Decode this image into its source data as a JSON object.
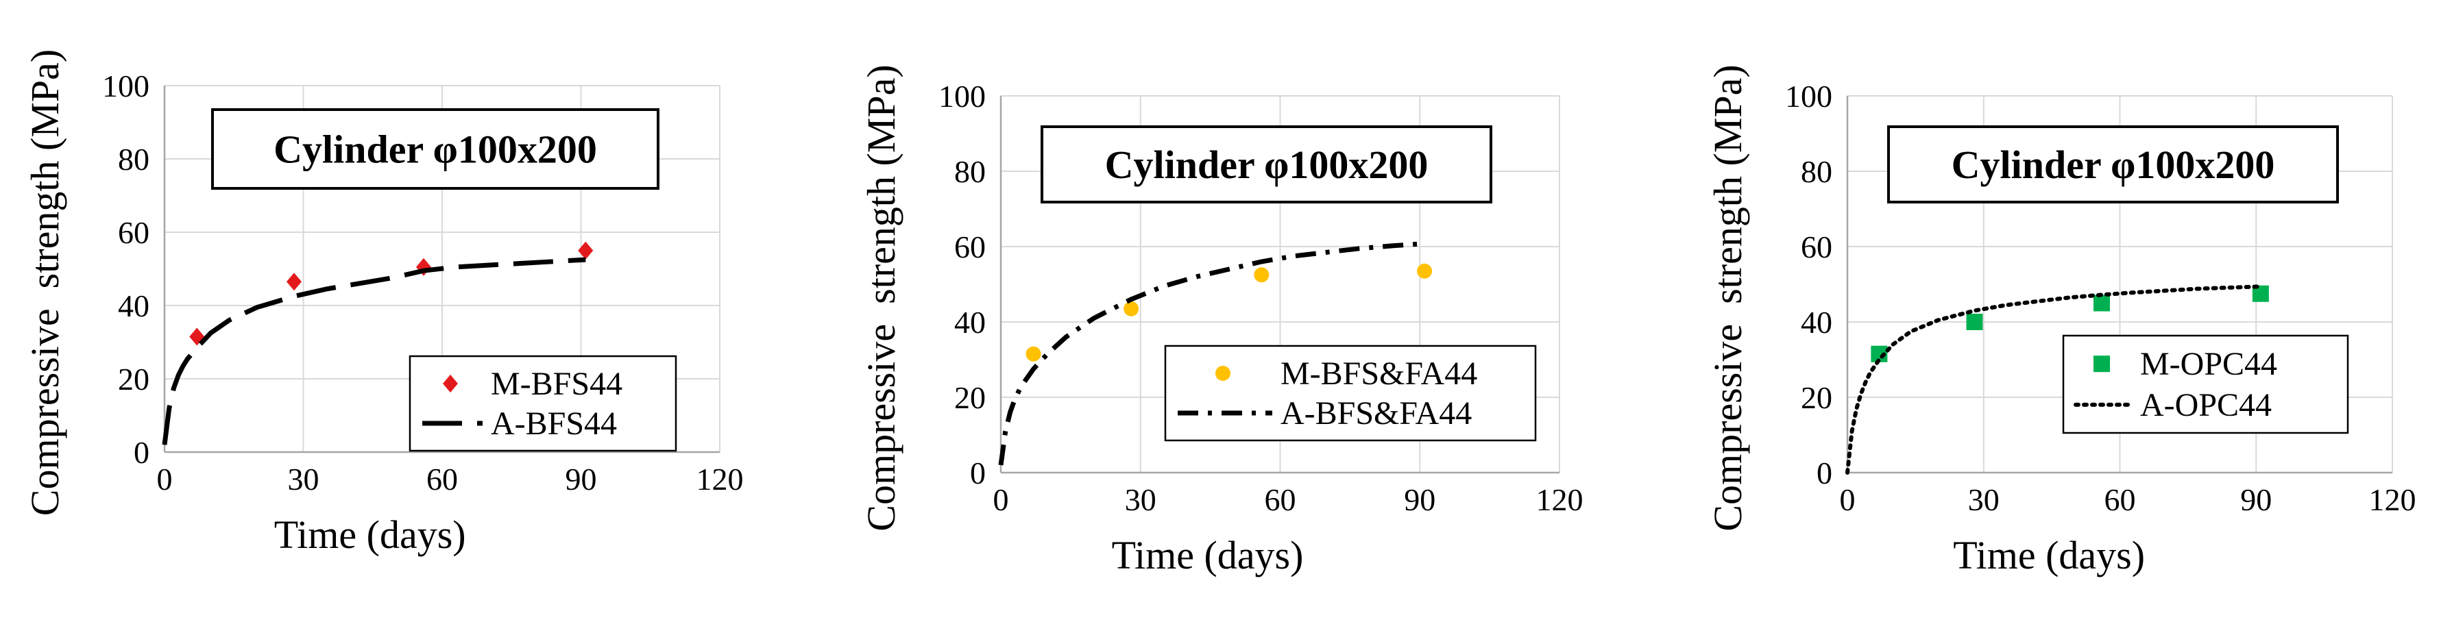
{
  "colors": {
    "grid": "#d9d9d9",
    "axis": "#a6a6a6",
    "text": "#000000",
    "bfs_marker": "#e31a1c",
    "bfsfa_marker": "#ffc000",
    "opc_marker": "#00b050",
    "model_line": "#000000"
  },
  "chart_data": [
    {
      "type": "scatter",
      "title": "Cylinder φ100x200",
      "xlabel": "Time (days)",
      "ylabel": "Compressive  strength (MPa)",
      "xlim": [
        0,
        120
      ],
      "ylim": [
        0,
        100
      ],
      "xticks": [
        0,
        30,
        60,
        90,
        120
      ],
      "yticks": [
        0,
        20,
        40,
        60,
        80,
        100
      ],
      "grid": true,
      "legend_position": "lower-right",
      "series": [
        {
          "name": "M-BFS44",
          "kind": "marker",
          "marker": "diamond",
          "color": "#e31a1c",
          "x": [
            7,
            28,
            56,
            91
          ],
          "y": [
            31.5,
            46.5,
            50.5,
            55
          ]
        },
        {
          "name": "A-BFS44",
          "kind": "line",
          "dash": "longdash",
          "color": "#000000",
          "x": [
            0,
            1,
            2,
            3,
            4,
            5,
            7,
            10,
            14,
            20,
            28,
            35,
            42,
            49,
            56,
            63,
            70,
            77,
            84,
            91
          ],
          "y": [
            2,
            12,
            17.5,
            21,
            23.5,
            25.5,
            28.5,
            32.5,
            36,
            39.5,
            42.5,
            44.5,
            46,
            47.5,
            49.5,
            50.5,
            51,
            51.5,
            52,
            52.5
          ]
        }
      ]
    },
    {
      "type": "scatter",
      "title": "Cylinder φ100x200",
      "xlabel": "Time (days)",
      "ylabel": "Compressive  strength (MPa)",
      "xlim": [
        0,
        120
      ],
      "ylim": [
        0,
        100
      ],
      "xticks": [
        0,
        30,
        60,
        90,
        120
      ],
      "yticks": [
        0,
        20,
        40,
        60,
        80,
        100
      ],
      "grid": true,
      "legend_position": "lower-right",
      "series": [
        {
          "name": "M-BFS&FA44",
          "kind": "marker",
          "marker": "circle",
          "color": "#ffc000",
          "x": [
            7,
            28,
            56,
            91
          ],
          "y": [
            31.5,
            43.5,
            52.5,
            53.5
          ]
        },
        {
          "name": "A-BFS&FA44",
          "kind": "line",
          "dash": "dashdot",
          "color": "#000000",
          "x": [
            0,
            1,
            2,
            3,
            4,
            5,
            7,
            10,
            14,
            20,
            28,
            35,
            42,
            49,
            56,
            63,
            70,
            77,
            84,
            91
          ],
          "y": [
            2,
            11,
            16,
            19.5,
            22,
            24,
            27.5,
            31.5,
            36,
            41,
            46,
            49.5,
            52,
            54,
            56,
            57.5,
            58.5,
            59.5,
            60.2,
            60.8
          ]
        }
      ]
    },
    {
      "type": "scatter",
      "title": "Cylinder φ100x200",
      "xlabel": "Time (days)",
      "ylabel": "Compressive  strength (MPa)",
      "xlim": [
        0,
        120
      ],
      "ylim": [
        0,
        100
      ],
      "xticks": [
        0,
        30,
        60,
        90,
        120
      ],
      "yticks": [
        0,
        20,
        40,
        60,
        80,
        100
      ],
      "grid": true,
      "legend_position": "right",
      "series": [
        {
          "name": "M-OPC44",
          "kind": "marker",
          "marker": "square",
          "color": "#00b050",
          "x": [
            7,
            28,
            56,
            91
          ],
          "y": [
            31.5,
            40,
            45,
            47.5
          ]
        },
        {
          "name": "A-OPC44",
          "kind": "line",
          "dash": "dotted",
          "color": "#000000",
          "x": [
            0,
            1,
            2,
            3,
            4,
            5,
            7,
            10,
            14,
            20,
            28,
            35,
            42,
            49,
            56,
            63,
            70,
            77,
            84,
            91
          ],
          "y": [
            0,
            11,
            17,
            21,
            24,
            26.5,
            30,
            34,
            37.5,
            40.5,
            43,
            44.5,
            45.5,
            46.5,
            47.2,
            47.8,
            48.3,
            48.8,
            49.1,
            49.4
          ]
        }
      ]
    }
  ]
}
